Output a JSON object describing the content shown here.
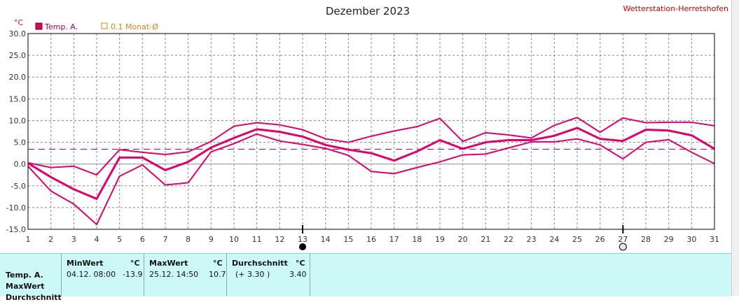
{
  "chart_data": {
    "type": "line",
    "title": "Dezember 2023",
    "station": "Wetterstation-Herretshofen",
    "ylabel": "°C",
    "ylim": [
      -15,
      30
    ],
    "xlim": [
      1,
      31
    ],
    "yticks": [
      "30.0",
      "25.0",
      "20.0",
      "15.0",
      "10.0",
      "5.0",
      "0.0",
      "-5.0",
      "-10.0",
      "-15.0"
    ],
    "x": [
      1,
      2,
      3,
      4,
      5,
      6,
      7,
      8,
      9,
      10,
      11,
      12,
      13,
      14,
      15,
      16,
      17,
      18,
      19,
      20,
      21,
      22,
      23,
      24,
      25,
      26,
      27,
      28,
      29,
      30,
      31
    ],
    "legend": [
      {
        "label": "Temp. A.",
        "color": "#e0006e",
        "marker": "filled"
      },
      {
        "label": "0.1 Monat-Ø",
        "color": "#e08020",
        "marker": "hollow"
      }
    ],
    "series": [
      {
        "role": "max",
        "values": [
          0.3,
          -0.8,
          -0.5,
          -2.5,
          3.3,
          2.7,
          2.2,
          2.8,
          5.2,
          8.7,
          9.5,
          9.0,
          7.9,
          5.8,
          5.0,
          6.4,
          7.6,
          8.6,
          10.5,
          5.2,
          7.2,
          6.7,
          6.0,
          8.9,
          10.7,
          7.3,
          10.6,
          9.5,
          9.6,
          9.6,
          8.8
        ]
      },
      {
        "role": "mean",
        "values": [
          0.2,
          -3.0,
          -5.8,
          -8.0,
          1.5,
          1.5,
          -1.4,
          0.5,
          3.8,
          6.0,
          8.0,
          7.4,
          6.3,
          4.4,
          3.3,
          2.5,
          0.8,
          2.9,
          5.5,
          3.5,
          5.0,
          5.5,
          5.5,
          6.5,
          8.3,
          5.8,
          5.3,
          7.9,
          7.7,
          6.6,
          3.5
        ]
      },
      {
        "role": "min",
        "values": [
          -0.5,
          -6.2,
          -9.2,
          -13.9,
          -2.8,
          -0.2,
          -4.8,
          -4.3,
          2.8,
          4.7,
          6.9,
          5.3,
          4.5,
          3.6,
          2.0,
          -1.7,
          -2.2,
          -0.8,
          0.5,
          2.1,
          2.3,
          3.7,
          5.1,
          5.1,
          5.8,
          4.4,
          1.2,
          5.0,
          5.6,
          2.7,
          0.1
        ]
      }
    ],
    "average_line": 3.4,
    "markers": [
      {
        "day": 13,
        "type": "new-moon"
      },
      {
        "day": 27,
        "type": "full-moon"
      }
    ],
    "grid": true
  },
  "summary": {
    "row_labels": [
      "Temp. A.",
      "MaxWert",
      "Durchschnitt"
    ],
    "min_header": "MinWert",
    "max_header": "MaxWert",
    "avg_header": "Durchschnitt",
    "unit": "°C",
    "min_date": "04.12.  08:00",
    "min_value": "-13.9",
    "max_date": "25.12.  14:50",
    "max_value": "10.7",
    "avg_note": "(+ 3.30 )",
    "avg_value": "3.40"
  },
  "colors": {
    "series": "#e0006e",
    "avg": "#d0006a",
    "panel": "#ccf8f8"
  }
}
